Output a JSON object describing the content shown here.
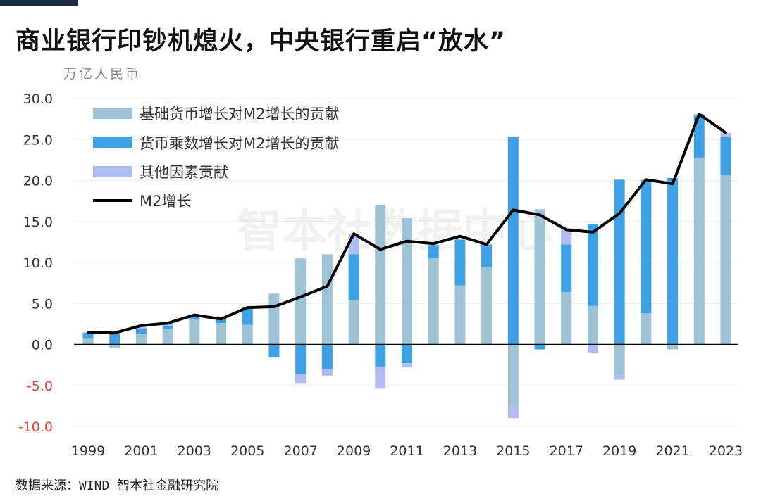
{
  "title": "商业银行印钞机熄火，中央银行重启“放水”",
  "unit_label": "万亿人民币",
  "source": "数据来源：WIND 智本社金融研究院",
  "watermark": "智本社数据中心",
  "colors": {
    "base_money": "#9dc3d4",
    "multiplier": "#3ea1e6",
    "other": "#b0bdf2",
    "m2_line": "#000000",
    "negative_tick": "#e5403a",
    "title_bar": "#1c2c44"
  },
  "chart_data": {
    "type": "bar",
    "stacked": true,
    "ylim": [
      -10,
      30
    ],
    "yticks": [
      -10,
      -5,
      0,
      5,
      10,
      15,
      20,
      25,
      30
    ],
    "ytick_labels": [
      "-10.0",
      "-5.0",
      "0.0",
      "5.0",
      "10.0",
      "15.0",
      "20.0",
      "25.0",
      "30.0"
    ],
    "categories": [
      "1999",
      "2000",
      "2001",
      "2002",
      "2003",
      "2004",
      "2005",
      "2006",
      "2007",
      "2008",
      "2009",
      "2010",
      "2011",
      "2012",
      "2013",
      "2014",
      "2015",
      "2016",
      "2017",
      "2018",
      "2019",
      "2020",
      "2021",
      "2022",
      "2023"
    ],
    "xtick_labels": [
      "1999",
      "2001",
      "2003",
      "2005",
      "2007",
      "2009",
      "2011",
      "2013",
      "2015",
      "2017",
      "2019",
      "2021",
      "2023"
    ],
    "legend_position": "top-left",
    "series": [
      {
        "name": "基础货币增长对M2增长的贡献",
        "kind": "bar",
        "values": [
          0.7,
          -0.3,
          1.3,
          1.9,
          3.1,
          2.6,
          2.4,
          6.2,
          10.5,
          11.0,
          5.4,
          17.0,
          15.4,
          10.5,
          7.2,
          9.4,
          -7.5,
          16.5,
          6.4,
          4.7,
          -3.7,
          3.8,
          -0.6,
          22.8,
          20.7
        ]
      },
      {
        "name": "货币乘数增长对M2增长的贡献",
        "kind": "bar",
        "values": [
          0.7,
          1.3,
          0.6,
          0.4,
          0.3,
          0.5,
          2.2,
          -1.6,
          -3.6,
          -3.0,
          5.6,
          -2.7,
          -2.3,
          1.6,
          5.6,
          2.8,
          25.3,
          -0.6,
          5.8,
          10.0,
          20.1,
          16.2,
          20.3,
          5.1,
          4.6
        ]
      },
      {
        "name": "其他因素贡献",
        "kind": "bar",
        "values": [
          0.1,
          -0.1,
          0.3,
          0.2,
          0.2,
          0.1,
          0.0,
          0.0,
          -1.2,
          -0.8,
          2.5,
          -2.7,
          -0.5,
          0.1,
          0.0,
          0.0,
          -1.5,
          0.0,
          1.9,
          -1.0,
          -0.6,
          0.1,
          0.0,
          0.2,
          0.5
        ]
      },
      {
        "name": "M2增长",
        "kind": "line",
        "values": [
          1.5,
          1.4,
          2.3,
          2.6,
          3.6,
          3.1,
          4.5,
          4.6,
          5.8,
          7.1,
          13.5,
          11.6,
          12.6,
          12.3,
          13.2,
          12.2,
          16.4,
          15.8,
          14.0,
          13.7,
          16.0,
          20.1,
          19.6,
          28.1,
          25.8
        ]
      }
    ]
  }
}
